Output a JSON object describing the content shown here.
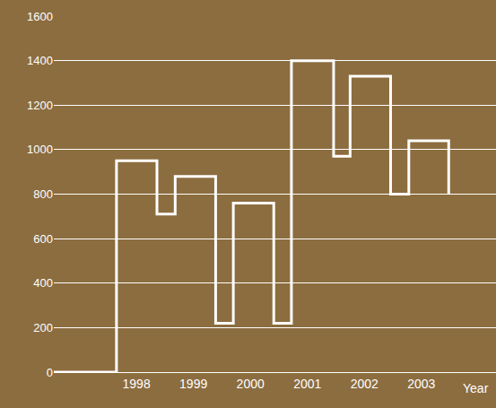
{
  "chart_data": {
    "type": "line",
    "line_style": "step",
    "color": "#ffffff",
    "x": [
      1996.55,
      1997.65,
      1998.36,
      1998.68,
      1999.39,
      1999.7,
      2000.41,
      2000.72,
      2001.46,
      2001.75,
      2002.46,
      2002.78,
      2003.48
    ],
    "values": [
      0,
      950,
      710,
      880,
      220,
      760,
      220,
      1400,
      970,
      1330,
      800,
      1040,
      800
    ],
    "xlabel": "Year",
    "xlim": [
      1996.55,
      2004.31
    ],
    "xticks": [
      1998,
      1999,
      2000,
      2001,
      2002,
      2003
    ],
    "ylim": [
      0,
      1600
    ],
    "yticks": [
      0,
      200,
      400,
      600,
      800,
      1000,
      1200,
      1400,
      1600
    ],
    "grid": true
  }
}
